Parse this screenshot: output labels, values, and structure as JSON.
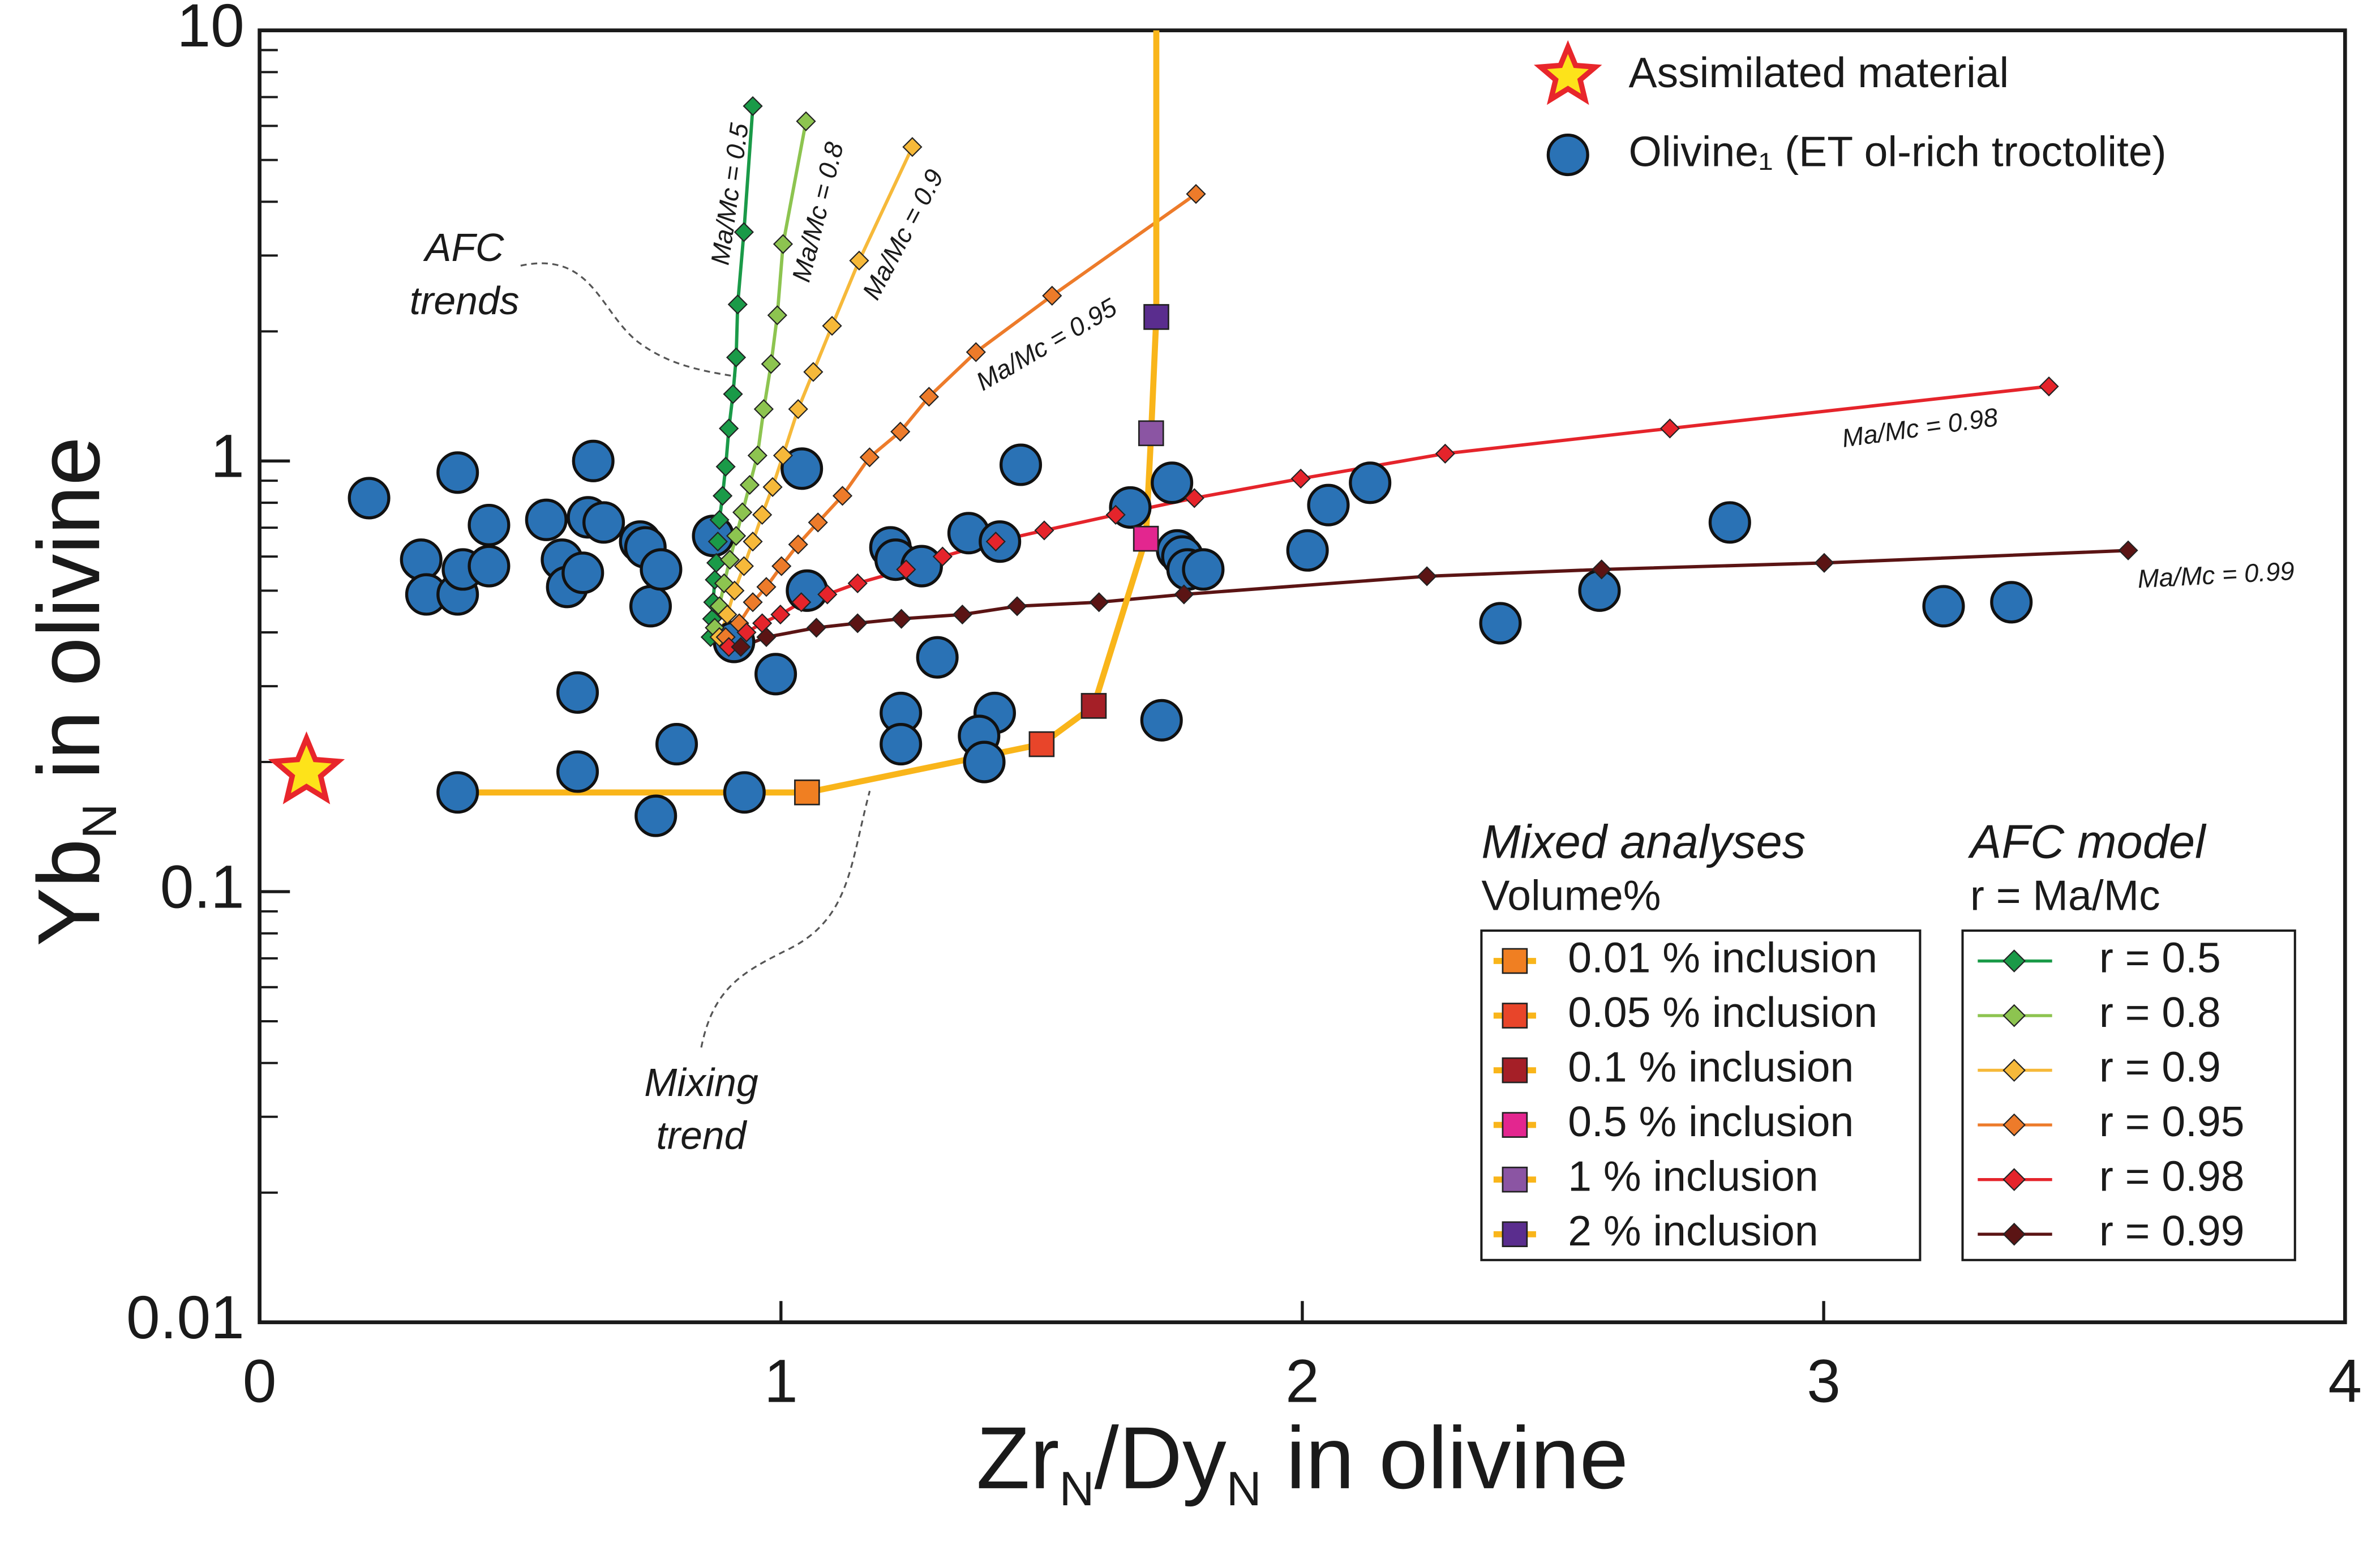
{
  "chart_data": {
    "type": "scatter",
    "log_y": true,
    "xlabel": [
      {
        "text": "Zr"
      },
      {
        "text": "N",
        "sub": true
      },
      {
        "text": "/Dy"
      },
      {
        "text": "N",
        "sub": true
      },
      {
        "text": " in olivine"
      }
    ],
    "ylabel": [
      {
        "text": "Yb"
      },
      {
        "text": "N",
        "sub": true
      },
      {
        "text": " in olivine"
      }
    ],
    "xlim": [
      0,
      4
    ],
    "ylim": [
      0.01,
      10
    ],
    "xticks": [
      0,
      1,
      2,
      3,
      4
    ],
    "yticks": [
      0.01,
      0.1,
      1,
      10
    ],
    "yminorticks": [
      0.02,
      0.03,
      0.04,
      0.05,
      0.06,
      0.07,
      0.08,
      0.09,
      0.2,
      0.3,
      0.4,
      0.5,
      0.6,
      0.7,
      0.8,
      0.9,
      2,
      3,
      4,
      5,
      6,
      7,
      8,
      9
    ],
    "series": [
      {
        "name": "Assimilated material",
        "kind": "star",
        "color": "#fde31a",
        "edge": "#e8262b",
        "x": [
          0.09
        ],
        "y": [
          0.19
        ]
      },
      {
        "name": "Olivine₁ (ET ol-rich troctolite)",
        "kind": "circle",
        "color": "#2a72b5",
        "edge": "#111111",
        "x": [
          0.21,
          0.31,
          0.32,
          0.38,
          0.38,
          0.39,
          0.38,
          0.44,
          0.44,
          0.55,
          0.58,
          0.59,
          0.61,
          0.61,
          0.62,
          0.63,
          0.64,
          0.66,
          0.73,
          0.74,
          0.75,
          0.77,
          0.76,
          0.8,
          0.87,
          0.91,
          0.93,
          0.99,
          1.04,
          1.05,
          1.21,
          1.22,
          1.23,
          1.23,
          1.3,
          1.27,
          1.36,
          1.42,
          1.41,
          1.38,
          1.39,
          1.46,
          1.67,
          1.75,
          1.76,
          1.77,
          1.78,
          1.81,
          1.73,
          2.01,
          2.05,
          2.13,
          2.38,
          2.57,
          2.82,
          3.23,
          3.36
        ],
        "y": [
          0.82,
          0.59,
          0.49,
          0.94,
          0.49,
          0.56,
          0.17,
          0.71,
          0.57,
          0.73,
          0.59,
          0.51,
          0.29,
          0.19,
          0.55,
          0.74,
          1.0,
          0.72,
          0.65,
          0.63,
          0.46,
          0.56,
          0.15,
          0.22,
          0.67,
          0.38,
          0.17,
          0.32,
          0.96,
          0.5,
          0.63,
          0.59,
          0.26,
          0.22,
          0.35,
          0.57,
          0.68,
          0.65,
          0.26,
          0.23,
          0.2,
          0.98,
          0.78,
          0.89,
          0.62,
          0.6,
          0.56,
          0.56,
          0.25,
          0.62,
          0.79,
          0.89,
          0.42,
          0.5,
          0.72,
          0.46,
          0.47
        ]
      }
    ],
    "mixing": {
      "title": "Mixed analyses",
      "subtitle": "Volume%",
      "line_color": "#f9b51a",
      "line": {
        "x": [
          0.42,
          1.05,
          1.5,
          1.6,
          1.7,
          1.71,
          1.72,
          1.72
        ],
        "y": [
          0.17,
          0.17,
          0.22,
          0.27,
          0.66,
          1.16,
          2.16,
          10
        ]
      },
      "series": [
        {
          "name": "0.01 % inclusion",
          "color": "#f07f22",
          "x": [
            1.05
          ],
          "y": [
            0.17
          ]
        },
        {
          "name": "0.05 % inclusion",
          "color": "#e8452a",
          "x": [
            1.5
          ],
          "y": [
            0.22
          ]
        },
        {
          "name": "0.1 % inclusion",
          "color": "#a51f27",
          "x": [
            1.6
          ],
          "y": [
            0.27
          ]
        },
        {
          "name": "0.5 % inclusion",
          "color": "#e3268f",
          "x": [
            1.7
          ],
          "y": [
            0.66
          ]
        },
        {
          "name": "1 % inclusion",
          "color": "#8b55a3",
          "x": [
            1.71
          ],
          "y": [
            1.16
          ]
        },
        {
          "name": "2 % inclusion",
          "color": "#5a2d8e",
          "x": [
            1.72
          ],
          "y": [
            2.16
          ]
        }
      ]
    },
    "afc": {
      "title": "AFC model",
      "subtitle": "r = Ma/Mc",
      "series": [
        {
          "name": "r = 0.5",
          "label": "Ma/Mc = 0.5",
          "color": "#1a9a48",
          "x": [
            0.865,
            0.868,
            0.87,
            0.873,
            0.876,
            0.879,
            0.882,
            0.888,
            0.894,
            0.9,
            0.908,
            0.914,
            0.917,
            0.929,
            0.946
          ],
          "y": [
            0.39,
            0.43,
            0.47,
            0.53,
            0.58,
            0.65,
            0.73,
            0.83,
            0.97,
            1.19,
            1.43,
            1.74,
            2.31,
            3.4,
            6.67
          ]
        },
        {
          "name": "r = 0.8",
          "label": "Ma/Mc = 0.8",
          "color": "#8dc450",
          "x": [
            0.873,
            0.882,
            0.891,
            0.902,
            0.914,
            0.926,
            0.94,
            0.955,
            0.967,
            0.981,
            0.993,
            1.004,
            1.048
          ],
          "y": [
            0.41,
            0.46,
            0.52,
            0.59,
            0.67,
            0.76,
            0.88,
            1.03,
            1.32,
            1.68,
            2.18,
            3.19,
            6.15
          ]
        },
        {
          "name": "r = 0.9",
          "label": "Ma/Mc = 0.9",
          "color": "#f6b93a",
          "x": [
            0.882,
            0.897,
            0.911,
            0.929,
            0.946,
            0.964,
            0.984,
            1.004,
            1.033,
            1.062,
            1.098,
            1.15,
            1.252
          ],
          "y": [
            0.39,
            0.44,
            0.5,
            0.57,
            0.65,
            0.75,
            0.87,
            1.03,
            1.32,
            1.61,
            2.06,
            2.92,
            5.36
          ]
        },
        {
          "name": "r = 0.95",
          "label": "Ma/Mc = 0.95",
          "color": "#ed7b2a",
          "x": [
            0.894,
            0.92,
            0.946,
            0.972,
            1.001,
            1.033,
            1.071,
            1.118,
            1.17,
            1.229,
            1.284,
            1.374,
            1.52,
            1.796
          ],
          "y": [
            0.39,
            0.42,
            0.47,
            0.51,
            0.57,
            0.64,
            0.72,
            0.83,
            1.02,
            1.17,
            1.41,
            1.79,
            2.42,
            4.17
          ]
        },
        {
          "name": "r = 0.98",
          "label": "Ma/Mc = 0.98",
          "color": "#e5242b",
          "x": [
            0.9,
            0.934,
            0.964,
            0.999,
            1.039,
            1.089,
            1.147,
            1.24,
            1.31,
            1.412,
            1.505,
            1.642,
            1.793,
            1.997,
            2.274,
            2.705,
            3.432
          ],
          "y": [
            0.37,
            0.4,
            0.42,
            0.44,
            0.47,
            0.49,
            0.52,
            0.56,
            0.6,
            0.65,
            0.69,
            0.75,
            0.82,
            0.91,
            1.04,
            1.19,
            1.49
          ]
        },
        {
          "name": "r = 0.99",
          "label": "Ma/Mc = 0.99",
          "color": "#5b1414",
          "x": [
            0.923,
            0.972,
            1.068,
            1.147,
            1.231,
            1.348,
            1.453,
            1.61,
            1.773,
            2.239,
            2.574,
            3.001,
            3.584
          ],
          "y": [
            0.37,
            0.39,
            0.41,
            0.42,
            0.43,
            0.44,
            0.46,
            0.47,
            0.49,
            0.54,
            0.56,
            0.58,
            0.62
          ]
        }
      ]
    },
    "annotations": [
      {
        "lines": [
          "AFC",
          "trends"
        ]
      },
      {
        "lines": [
          "Mixing",
          "trend"
        ]
      }
    ]
  }
}
